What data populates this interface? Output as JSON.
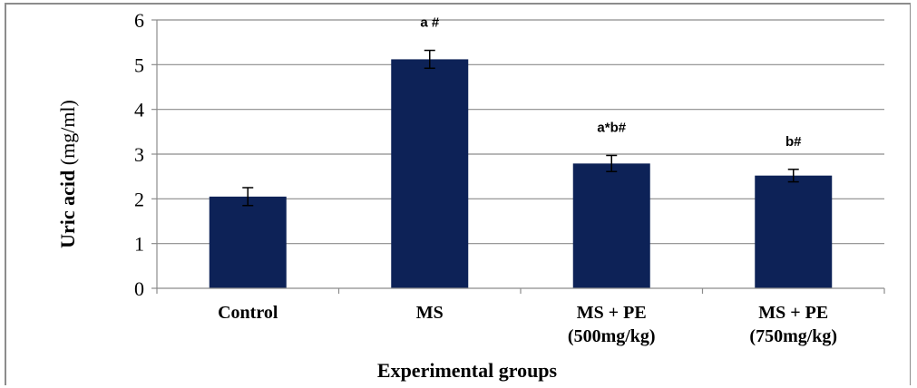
{
  "chart_data": {
    "type": "bar",
    "title": "",
    "categories": [
      [
        "Control"
      ],
      [
        "MS"
      ],
      [
        "MS + PE",
        "(500mg/kg)"
      ],
      [
        "MS + PE",
        "(750mg/kg)"
      ]
    ],
    "values": [
      2.05,
      5.12,
      2.79,
      2.52
    ],
    "errors": [
      0.2,
      0.2,
      0.18,
      0.14
    ],
    "annotations": [
      "",
      "a #",
      "a*b#",
      "b#"
    ],
    "xlabel": "Experimental groups",
    "ylabel_bold": "Uric acid",
    "ylabel_rest": " (mg/ml)",
    "ylim": [
      0,
      6
    ],
    "yticks": [
      0,
      1,
      2,
      3,
      4,
      5,
      6
    ],
    "grid": true,
    "legend": "none",
    "bar_color": "#0d2257",
    "grid_color": "#8c8c8c"
  }
}
